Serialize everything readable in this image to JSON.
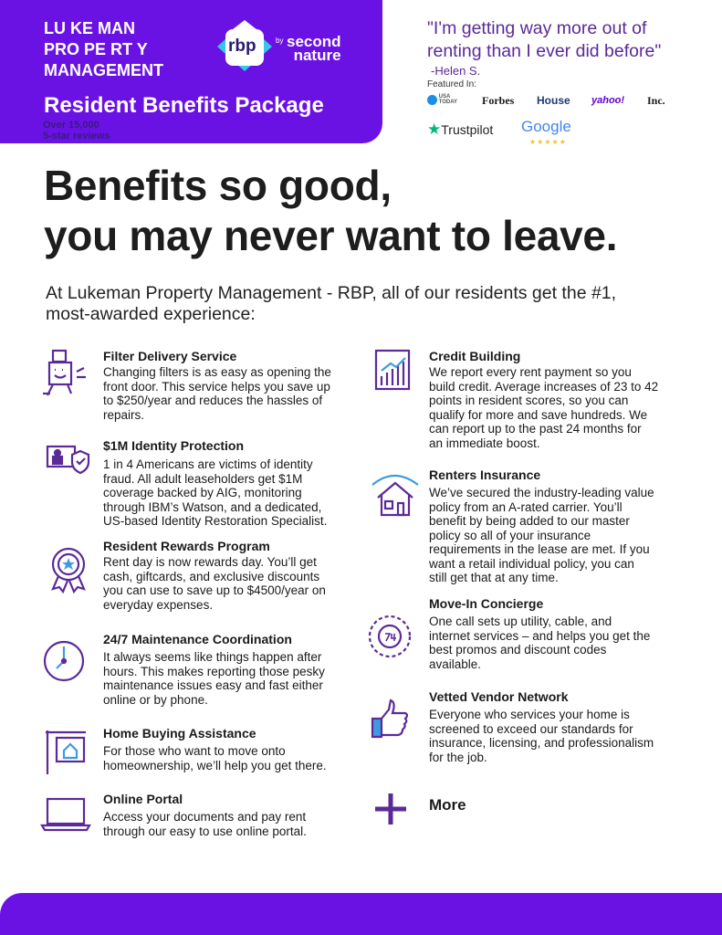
{
  "header": {
    "company": "LU KE MAN\nPRO PE RT Y\nMANAGEMENT",
    "logo_text": "rbp",
    "logo_by": "by",
    "logo_brand": "second\nnature",
    "package_title": "Resident Benefits Package",
    "reviews": "Over 15,000\n5-star reviews",
    "quote": "\"I'm getting way more out of\nrenting than I ever did before\"",
    "quote_author": "-Helen S.",
    "featured_label": "Featured In:",
    "press": [
      "USA TODAY",
      "Forbes",
      "House",
      "yahoo!",
      "Inc."
    ],
    "trustpilot": "Trustpilot",
    "google": "Google",
    "google_stars": "★★★★★"
  },
  "headline": "Benefits so good,\nyou may never want to leave.",
  "intro": "At Lukeman Property Management - RBP, all of our residents get the #1,\nmost-awarded experience:",
  "left_benefits": [
    {
      "icon": "filter-box-icon",
      "title": "Filter Delivery Service",
      "desc": "Changing filters is as easy as opening the\nfront door. This service helps you save up\nto $250/year and reduces the hassles of\nrepairs."
    },
    {
      "icon": "identity-shield-icon",
      "title": "$1M Identity Protection",
      "desc": "1 in 4 Americans are victims of identity\nfraud. All adult leaseholders get $1M\ncoverage backed by AIG, monitoring\nthrough IBM’s Watson, and a dedicated,\nUS-based Identity Restoration Specialist."
    },
    {
      "icon": "award-ribbon-icon",
      "title": "Resident Rewards Program",
      "desc": "Rent day is now rewards day. You’ll get\ncash, giftcards, and exclusive discounts\nyou can use to save up to $4500/year on\neveryday expenses."
    },
    {
      "icon": "clock-icon",
      "title": "24/7 Maintenance Coordination",
      "desc": "It always seems like things happen after\nhours. This makes reporting those pesky\nmaintenance issues easy and fast either\nonline or by phone."
    },
    {
      "icon": "house-sign-icon",
      "title": "Home Buying Assistance",
      "desc": "For those who want to move onto\nhomeownership, we’ll help you get there."
    },
    {
      "icon": "laptop-icon",
      "title": "Online Portal",
      "desc": "Access your documents and pay rent\nthrough our easy to use online portal."
    }
  ],
  "right_benefits": [
    {
      "icon": "bar-chart-icon",
      "title": "Credit Building",
      "desc": "We report every rent payment so you\nbuild credit. Average increases of 23 to 42\npoints in resident scores, so you can\nqualify for more and save hundreds. We\ncan report up to the past 24 months for\nan immediate boost."
    },
    {
      "icon": "house-umbrella-icon",
      "title": "Renters Insurance",
      "desc": "We’ve secured the industry-leading value\npolicy from an A-rated carrier. You’ll\nbenefit by being added to our master\npolicy so all of your insurance\nrequirements in the lease are met. If you\nwant a retail individual policy, you can\nstill get that at any time."
    },
    {
      "icon": "thermostat-icon",
      "title": "Move-In Concierge",
      "desc": "One call sets up utility, cable, and\ninternet services – and helps you get the\nbest promos and discount codes\navailable."
    },
    {
      "icon": "thumbs-up-icon",
      "title": "Vetted Vendor Network",
      "desc": "Everyone who services your home is\nscreened to exceed our standards for\ninsurance, licensing, and professionalism\nfor the job."
    }
  ],
  "more_label": "More",
  "colors": {
    "brand_purple": "#6a12e4",
    "icon_purple": "#5b2a98",
    "trustpilot_green": "#00b67a"
  }
}
